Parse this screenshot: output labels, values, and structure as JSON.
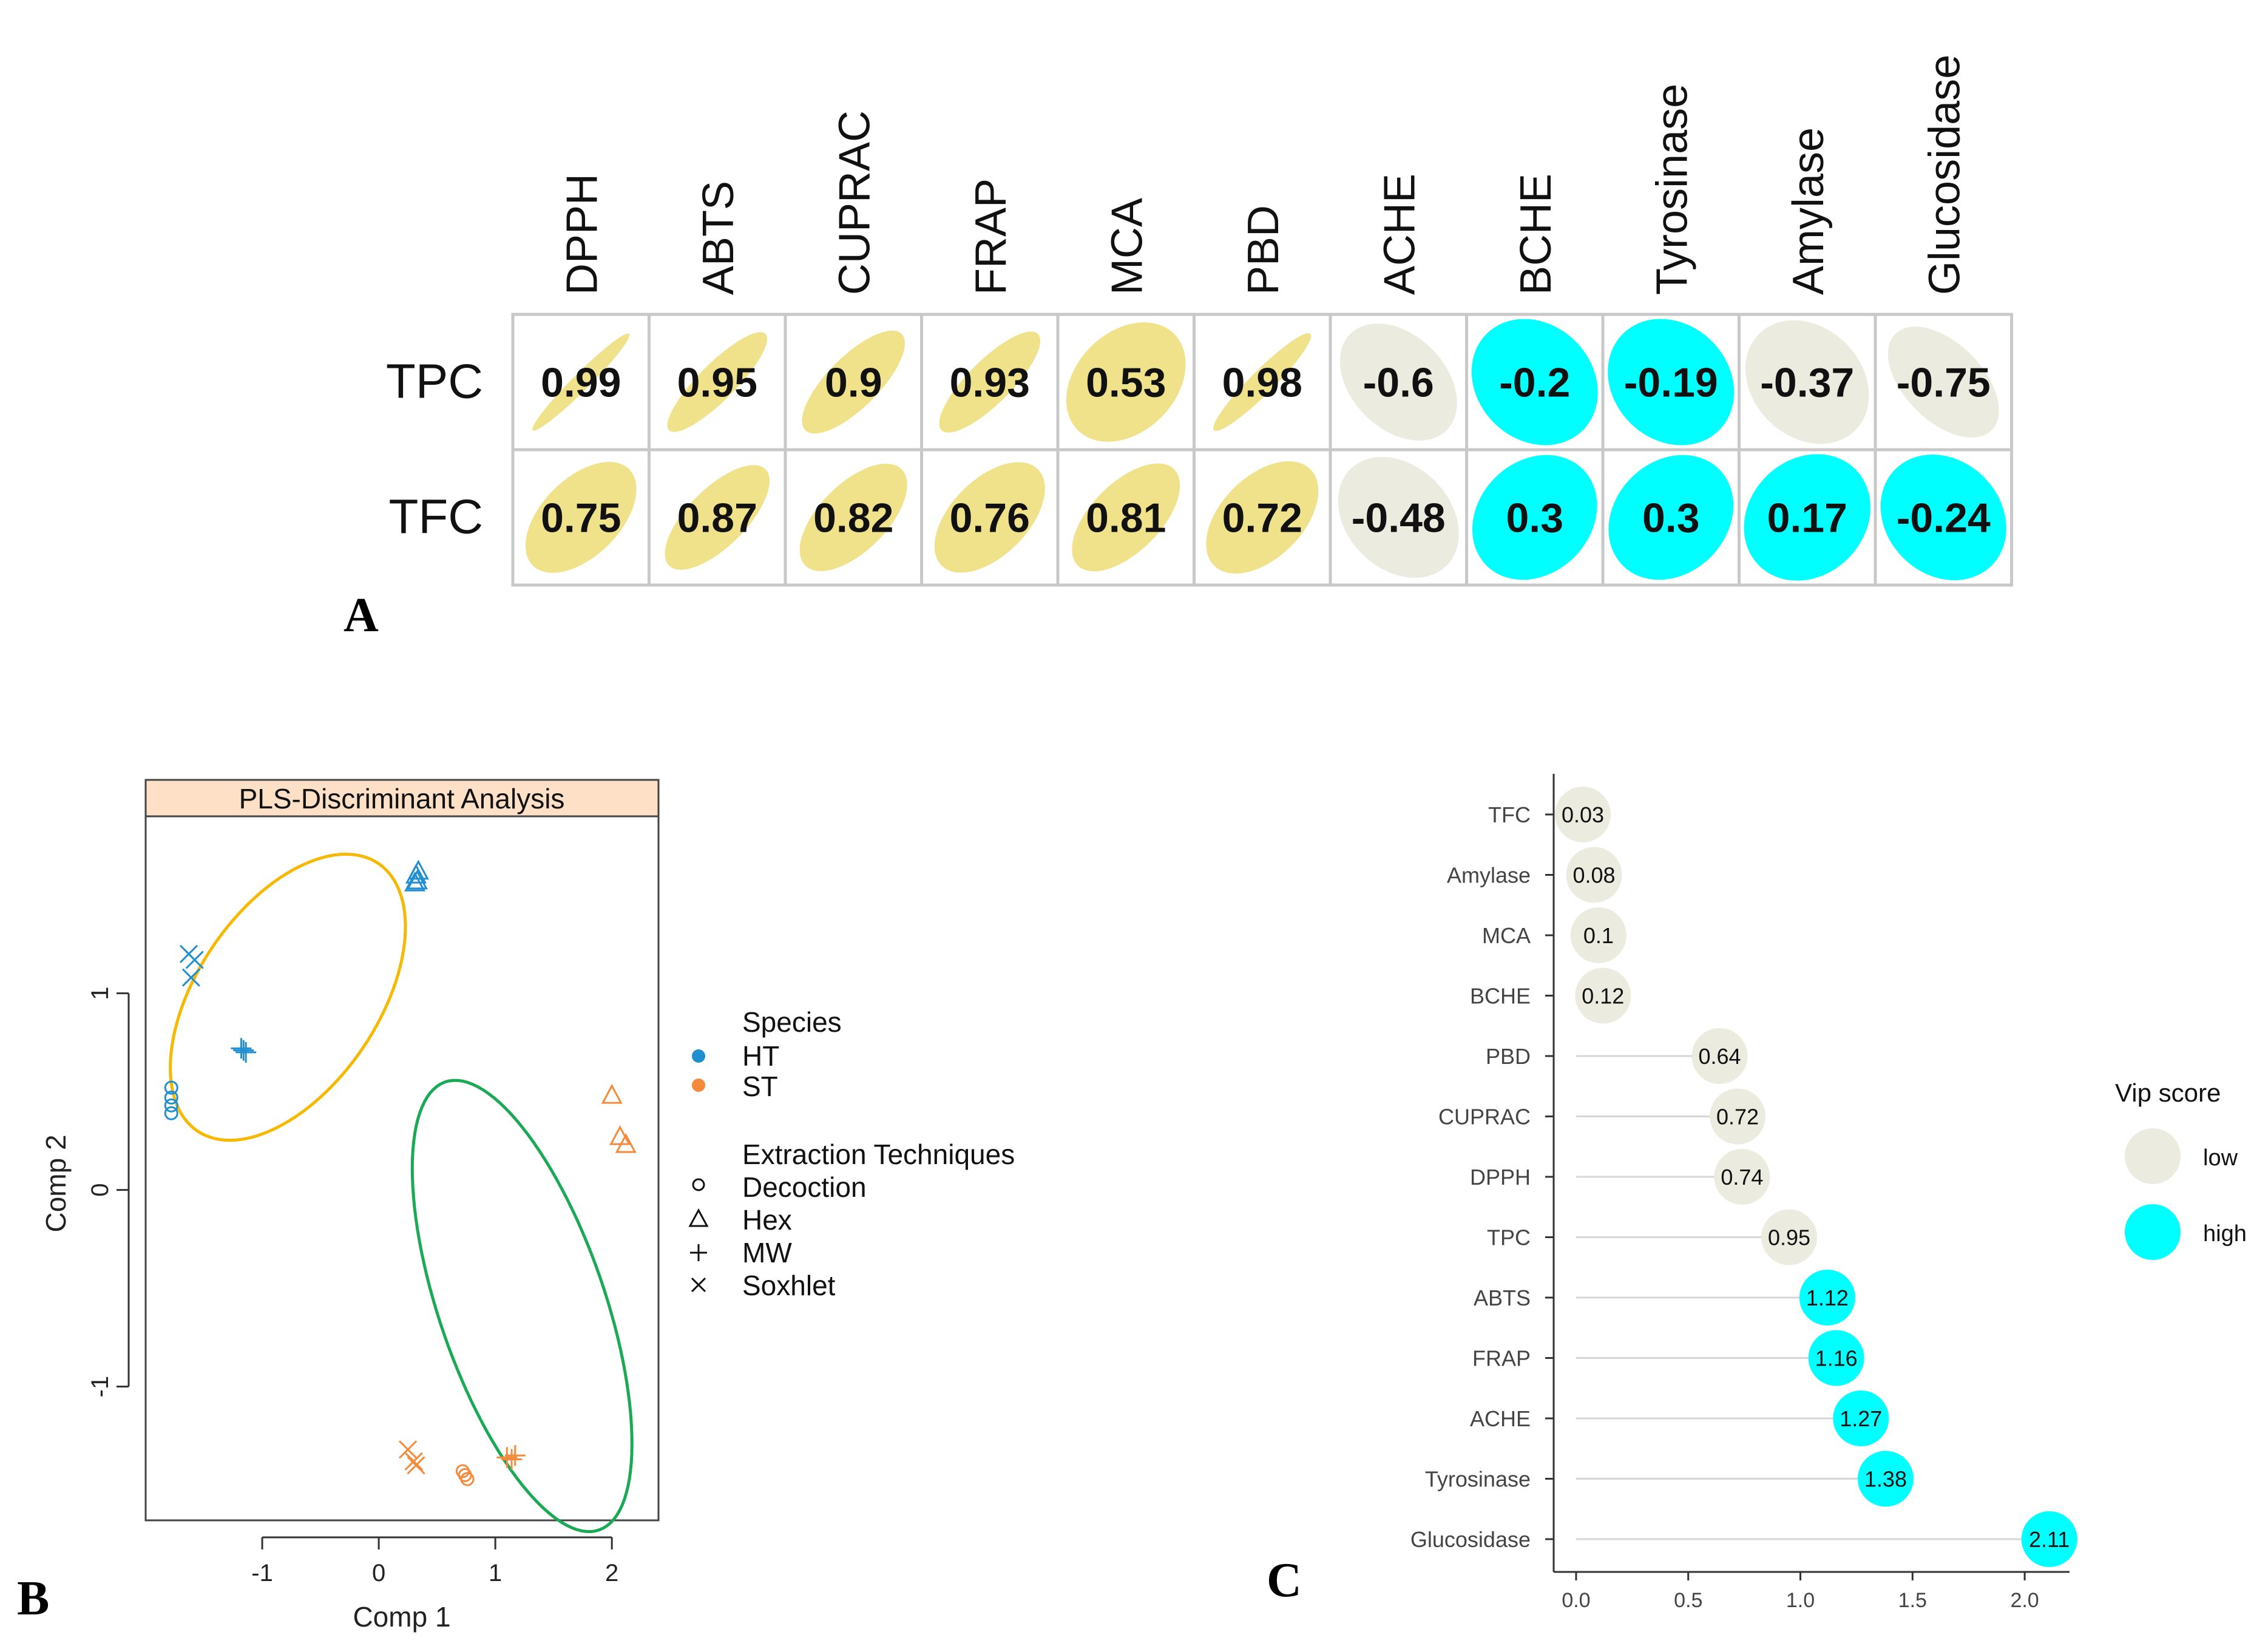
{
  "panel_labels": {
    "a": "A",
    "b": "B",
    "c": "C"
  },
  "colors": {
    "positive": "#f0e28a",
    "negative_weak": "#ebebdf",
    "negative_strong": "#00ffff",
    "grid": "#c8c8c8",
    "ht": "#1f8fd2",
    "st": "#f58a3a",
    "ellipse_ht": "#f6b800",
    "ellipse_st": "#1aaa55",
    "strip": "#fde0c5",
    "vip_low": "#ebebdf",
    "vip_high": "#00ffff",
    "segment": "#d6d6d6"
  },
  "chart_data": [
    {
      "type": "heatmap",
      "title": "",
      "columns": [
        "DPPH",
        "ABTS",
        "CUPRAC",
        "FRAP",
        "MCA",
        "PBD",
        "ACHE",
        "BCHE",
        "Tyrosinase",
        "Amylase",
        "Glucosidase"
      ],
      "rows": [
        "TPC",
        "TFC"
      ],
      "values": [
        [
          0.99,
          0.95,
          0.9,
          0.93,
          0.53,
          0.98,
          -0.6,
          -0.2,
          -0.19,
          -0.37,
          -0.75
        ],
        [
          0.75,
          0.87,
          0.82,
          0.76,
          0.81,
          0.72,
          -0.48,
          0.3,
          0.3,
          0.17,
          -0.24
        ]
      ],
      "labels": [
        [
          "0.99",
          "0.95",
          "0.9",
          "0.93",
          "0.53",
          "0.98",
          "-0.6",
          "-0.2",
          "-0.19",
          "-0.37",
          "-0.75"
        ],
        [
          "0.75",
          "0.87",
          "0.82",
          "0.76",
          "0.81",
          "0.72",
          "-0.48",
          "0.3",
          "0.3",
          "0.17",
          "-0.24"
        ]
      ],
      "cell_color": [
        [
          "positive",
          "positive",
          "positive",
          "positive",
          "positive",
          "positive",
          "negative_weak",
          "negative_strong",
          "negative_strong",
          "negative_weak",
          "negative_weak"
        ],
        [
          "positive",
          "positive",
          "positive",
          "positive",
          "positive",
          "positive",
          "negative_weak",
          "negative_strong",
          "negative_strong",
          "negative_strong",
          "negative_strong"
        ]
      ]
    },
    {
      "type": "scatter",
      "title": "PLS-Discriminant Analysis",
      "xlabel": "Comp 1",
      "ylabel": "Comp 2",
      "xlim": [
        -2.0,
        2.4
      ],
      "ylim": [
        -1.68,
        1.9
      ],
      "xticks": [
        -1,
        0,
        1,
        2
      ],
      "xtick_labels": [
        "-1",
        "0",
        "1",
        "2"
      ],
      "yticks": [
        -1,
        0,
        1
      ],
      "ytick_labels": [
        "-1",
        "0",
        "1"
      ],
      "series": [
        {
          "name": "HT",
          "species": "HT",
          "technique": "Decoction",
          "x": [
            -1.78,
            -1.78,
            -1.78,
            -1.78
          ],
          "y": [
            0.52,
            0.47,
            0.43,
            0.39
          ]
        },
        {
          "name": "HT",
          "species": "HT",
          "technique": "Hex",
          "x": [
            0.32,
            0.31,
            0.34,
            0.33
          ],
          "y": [
            1.6,
            1.56,
            1.62,
            1.57
          ]
        },
        {
          "name": "HT",
          "species": "HT",
          "technique": "MW",
          "x": [
            -1.18,
            -1.14,
            -1.16
          ],
          "y": [
            0.72,
            0.7,
            0.71
          ]
        },
        {
          "name": "HT",
          "species": "HT",
          "technique": "Soxhlet",
          "x": [
            -1.63,
            -1.58,
            -1.61
          ],
          "y": [
            1.2,
            1.17,
            1.08
          ]
        },
        {
          "name": "ST",
          "species": "ST",
          "technique": "Decoction",
          "x": [
            0.72,
            0.74,
            0.76
          ],
          "y": [
            -1.43,
            -1.45,
            -1.47
          ]
        },
        {
          "name": "ST",
          "species": "ST",
          "technique": "Hex",
          "x": [
            2.0,
            2.07,
            2.12
          ],
          "y": [
            0.48,
            0.27,
            0.23
          ]
        },
        {
          "name": "ST",
          "species": "ST",
          "technique": "MW",
          "x": [
            1.1,
            1.14,
            1.17
          ],
          "y": [
            -1.36,
            -1.37,
            -1.35
          ]
        },
        {
          "name": "ST",
          "species": "ST",
          "technique": "Soxhlet",
          "x": [
            0.25,
            0.3,
            0.32
          ],
          "y": [
            -1.32,
            -1.38,
            -1.4
          ]
        }
      ],
      "ellipses": [
        {
          "group": "HT",
          "cx": -0.78,
          "cy": 0.98,
          "rx": 1.1,
          "ry": 0.58,
          "angle_deg": 28
        },
        {
          "group": "ST",
          "cx": 1.23,
          "cy": -0.59,
          "rx": 1.34,
          "ry": 0.64,
          "angle_deg": -54
        }
      ],
      "legend": {
        "species_title": "Species",
        "species": [
          "HT",
          "ST"
        ],
        "technique_title": "Extraction Techniques",
        "techniques": [
          "Decoction",
          "Hex",
          "MW",
          "Soxhlet"
        ]
      }
    },
    {
      "type": "lollipop",
      "title": "",
      "xlabel": "",
      "xlim": [
        -0.1,
        2.2
      ],
      "xticks": [
        0.0,
        0.5,
        1.0,
        1.5,
        2.0
      ],
      "xtick_labels": [
        "0.0",
        "0.5",
        "1.0",
        "1.5",
        "2.0"
      ],
      "categories": [
        "TFC",
        "Amylase",
        "MCA",
        "BCHE",
        "PBD",
        "CUPRAC",
        "DPPH",
        "TPC",
        "ABTS",
        "FRAP",
        "ACHE",
        "Tyrosinase",
        "Glucosidase"
      ],
      "values": [
        0.03,
        0.08,
        0.1,
        0.12,
        0.64,
        0.72,
        0.74,
        0.95,
        1.12,
        1.16,
        1.27,
        1.38,
        2.11
      ],
      "value_labels": [
        "0.03",
        "0.08",
        "0.1",
        "0.12",
        "0.64",
        "0.72",
        "0.74",
        "0.95",
        "1.12",
        "1.16",
        "1.27",
        "1.38",
        "2.11"
      ],
      "groups": [
        "low",
        "low",
        "low",
        "low",
        "low",
        "low",
        "low",
        "low",
        "high",
        "high",
        "high",
        "high",
        "high"
      ],
      "legend": {
        "title": "Vip score",
        "items": [
          "low",
          "high"
        ]
      }
    }
  ]
}
